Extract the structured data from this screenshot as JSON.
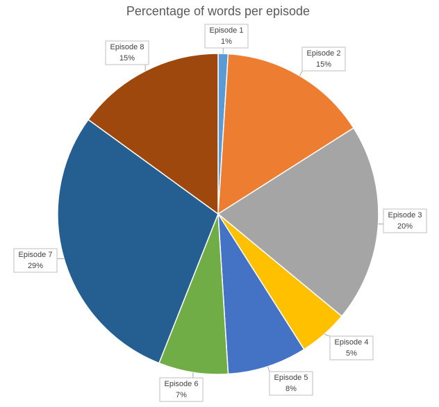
{
  "chart_data": {
    "type": "pie",
    "title": "Percentage of words per episode",
    "categories": [
      "Episode 1",
      "Episode 2",
      "Episode 3",
      "Episode 4",
      "Episode 5",
      "Episode 6",
      "Episode 7",
      "Episode 8"
    ],
    "values": [
      1,
      15,
      20,
      5,
      8,
      7,
      29,
      15
    ],
    "value_labels": [
      "1%",
      "15%",
      "20%",
      "5%",
      "8%",
      "7%",
      "29%",
      "15%"
    ],
    "colors": [
      "#5b9bd5",
      "#ed7d31",
      "#a5a5a5",
      "#ffc000",
      "#4472c4",
      "#70ad47",
      "#255e91",
      "#9e480e"
    ]
  }
}
